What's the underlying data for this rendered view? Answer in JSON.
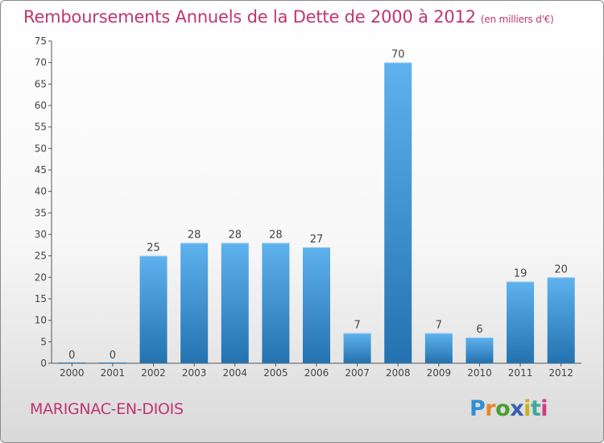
{
  "title": "Remboursements Annuels de la Dette de 2000 à 2012",
  "unit": "(en milliers d'€)",
  "commune": "MARIGNAC-EN-DIOIS",
  "logo": {
    "letters": [
      "P",
      "r",
      "o",
      "x",
      "i",
      "t",
      "i"
    ],
    "colors": [
      "#2f8fd5",
      "#e8862a",
      "#4a9e35",
      "#3a5fb0",
      "#c9b21a",
      "#3fa6a0",
      "#d63a7c"
    ]
  },
  "colors": {
    "title": "#c0356e",
    "bar_light": "#5aaeea",
    "bar_dark": "#2775b3",
    "text": "#444444"
  },
  "chart_data": {
    "type": "bar",
    "title": "Remboursements Annuels de la Dette de 2000 à 2012",
    "categories": [
      "2000",
      "2001",
      "2002",
      "2003",
      "2004",
      "2005",
      "2006",
      "2007",
      "2008",
      "2009",
      "2010",
      "2011",
      "2012"
    ],
    "values": [
      0,
      0,
      25,
      28,
      28,
      28,
      27,
      7,
      70,
      7,
      6,
      19,
      20
    ],
    "ylim": [
      0,
      75
    ],
    "yticks": [
      0,
      5,
      10,
      15,
      20,
      25,
      30,
      35,
      40,
      45,
      50,
      55,
      60,
      65,
      70,
      75
    ],
    "grid": false,
    "xlabel": "",
    "ylabel": ""
  }
}
